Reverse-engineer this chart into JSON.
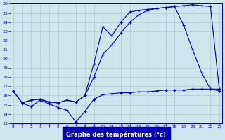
{
  "title": "Graphe des températures (°c)",
  "bg_color": "#cce8ec",
  "line_color": "#0000bb",
  "grid_color": "#aacccc",
  "xlim_min": -0.3,
  "xlim_max": 23.3,
  "ylim_min": 13,
  "ylim_max": 26,
  "xticks": [
    0,
    1,
    2,
    3,
    4,
    5,
    6,
    7,
    8,
    9,
    10,
    11,
    12,
    13,
    14,
    15,
    16,
    17,
    18,
    19,
    20,
    21,
    22,
    23
  ],
  "yticks": [
    13,
    14,
    15,
    16,
    17,
    18,
    19,
    20,
    21,
    22,
    23,
    24,
    25,
    26
  ],
  "line1_x": [
    0,
    1,
    2,
    3,
    4,
    5,
    6,
    7,
    8,
    9,
    10,
    11,
    12,
    13,
    14,
    15,
    16,
    17,
    18,
    19,
    20,
    21,
    22,
    23
  ],
  "line1_y": [
    16.5,
    15.2,
    14.8,
    15.5,
    15.1,
    14.7,
    14.4,
    13.1,
    14.3,
    15.6,
    16.1,
    16.2,
    16.3,
    16.3,
    16.4,
    16.4,
    16.5,
    16.6,
    16.6,
    16.6,
    16.7,
    16.7,
    16.7,
    16.7
  ],
  "line2_x": [
    0,
    1,
    2,
    3,
    4,
    5,
    6,
    7,
    8,
    9,
    10,
    11,
    12,
    13,
    14,
    15,
    16,
    17,
    18,
    19,
    20,
    21,
    22,
    23
  ],
  "line2_y": [
    16.5,
    15.2,
    15.5,
    15.6,
    15.3,
    15.2,
    15.5,
    15.3,
    16.0,
    18.0,
    20.5,
    21.5,
    22.8,
    24.0,
    24.8,
    25.3,
    25.5,
    25.6,
    25.7,
    25.8,
    25.9,
    25.8,
    25.7,
    16.5
  ],
  "line3_x": [
    0,
    1,
    2,
    3,
    4,
    5,
    6,
    7,
    8,
    9,
    10,
    11,
    12,
    13,
    14,
    15,
    16,
    17,
    18,
    19,
    20,
    21,
    22,
    23
  ],
  "line3_y": [
    16.5,
    15.2,
    15.5,
    15.6,
    15.3,
    15.2,
    15.5,
    15.3,
    16.0,
    19.5,
    23.5,
    22.5,
    24.0,
    25.1,
    25.3,
    25.4,
    25.5,
    25.6,
    25.7,
    23.7,
    21.0,
    18.5,
    16.7,
    16.5
  ]
}
